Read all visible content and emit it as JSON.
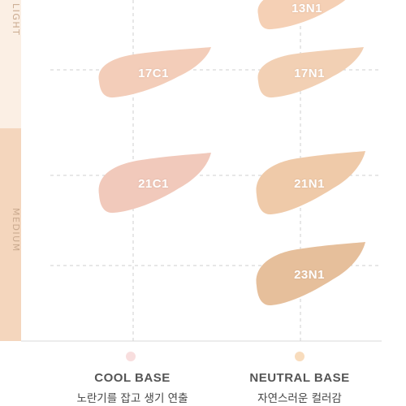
{
  "side": {
    "light_label": "LIGHT",
    "medium_label": "MEDIUM"
  },
  "swatches": [
    {
      "label": "13N1",
      "color": "#f5d0b5"
    },
    {
      "label": "17C1",
      "color": "#f3cdb9"
    },
    {
      "label": "17N1",
      "color": "#f2d0b4"
    },
    {
      "label": "21C1",
      "color": "#f1c9bb"
    },
    {
      "label": "21N1",
      "color": "#efcaa9"
    },
    {
      "label": "23N1",
      "color": "#e6bf9b"
    }
  ],
  "bases": {
    "cool": {
      "title": "COOL BASE",
      "subtitle": "노란기를 잡고 생기 연출",
      "dot_color": "#f8dede"
    },
    "neutral": {
      "title": "NEUTRAL BASE",
      "subtitle": "자연스러운 컬러감",
      "dot_color": "#f8dcbd"
    }
  }
}
